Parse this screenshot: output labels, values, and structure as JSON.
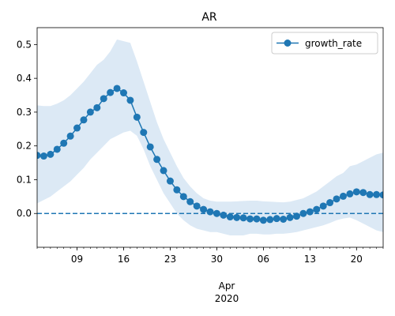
{
  "chart_data": {
    "type": "line",
    "title": "AR",
    "xlabel": "",
    "ylabel": "",
    "period_label": "Apr",
    "year_label": "2020",
    "ylim": [
      -0.1,
      0.55
    ],
    "xlim": [
      "2020-03-03",
      "2020-04-24"
    ],
    "y_ticks": [
      0.0,
      0.1,
      0.2,
      0.3,
      0.4,
      0.5
    ],
    "x_ticks": [
      {
        "date": "2020-03-09",
        "label": "09"
      },
      {
        "date": "2020-03-16",
        "label": "16"
      },
      {
        "date": "2020-03-23",
        "label": "23"
      },
      {
        "date": "2020-03-30",
        "label": "30"
      },
      {
        "date": "2020-04-06",
        "label": "06"
      },
      {
        "date": "2020-04-13",
        "label": "13"
      },
      {
        "date": "2020-04-20",
        "label": "20"
      }
    ],
    "reference_line": 0.0,
    "legend": {
      "position": "upper right"
    },
    "series": [
      {
        "name": "growth_rate",
        "color": "#1f77b4",
        "band_color": "#dce9f5",
        "dates": [
          "2020-03-03",
          "2020-03-04",
          "2020-03-05",
          "2020-03-06",
          "2020-03-07",
          "2020-03-08",
          "2020-03-09",
          "2020-03-10",
          "2020-03-11",
          "2020-03-12",
          "2020-03-13",
          "2020-03-14",
          "2020-03-15",
          "2020-03-16",
          "2020-03-17",
          "2020-03-18",
          "2020-03-19",
          "2020-03-20",
          "2020-03-21",
          "2020-03-22",
          "2020-03-23",
          "2020-03-24",
          "2020-03-25",
          "2020-03-26",
          "2020-03-27",
          "2020-03-28",
          "2020-03-29",
          "2020-03-30",
          "2020-03-31",
          "2020-04-01",
          "2020-04-02",
          "2020-04-03",
          "2020-04-04",
          "2020-04-05",
          "2020-04-06",
          "2020-04-07",
          "2020-04-08",
          "2020-04-09",
          "2020-04-10",
          "2020-04-11",
          "2020-04-12",
          "2020-04-13",
          "2020-04-14",
          "2020-04-15",
          "2020-04-16",
          "2020-04-17",
          "2020-04-18",
          "2020-04-19",
          "2020-04-20",
          "2020-04-21",
          "2020-04-22",
          "2020-04-23",
          "2020-04-24"
        ],
        "values": [
          0.172,
          0.17,
          0.175,
          0.19,
          0.208,
          0.229,
          0.253,
          0.277,
          0.3,
          0.313,
          0.34,
          0.358,
          0.37,
          0.357,
          0.335,
          0.285,
          0.24,
          0.197,
          0.16,
          0.127,
          0.096,
          0.07,
          0.05,
          0.035,
          0.022,
          0.012,
          0.005,
          0.0,
          -0.005,
          -0.01,
          -0.012,
          -0.013,
          -0.016,
          -0.016,
          -0.02,
          -0.018,
          -0.015,
          -0.017,
          -0.012,
          -0.008,
          0.0,
          0.005,
          0.012,
          0.022,
          0.032,
          0.043,
          0.051,
          0.058,
          0.064,
          0.062,
          0.056,
          0.056,
          0.055
        ],
        "lower": [
          0.03,
          0.04,
          0.05,
          0.065,
          0.08,
          0.095,
          0.115,
          0.135,
          0.16,
          0.18,
          0.2,
          0.22,
          0.23,
          0.24,
          0.245,
          0.23,
          0.19,
          0.14,
          0.1,
          0.06,
          0.03,
          0.0,
          -0.02,
          -0.035,
          -0.045,
          -0.05,
          -0.055,
          -0.055,
          -0.06,
          -0.065,
          -0.065,
          -0.065,
          -0.06,
          -0.06,
          -0.062,
          -0.062,
          -0.06,
          -0.06,
          -0.058,
          -0.055,
          -0.05,
          -0.045,
          -0.04,
          -0.035,
          -0.028,
          -0.02,
          -0.015,
          -0.012,
          -0.02,
          -0.03,
          -0.04,
          -0.05,
          -0.055
        ],
        "upper": [
          0.32,
          0.318,
          0.318,
          0.325,
          0.335,
          0.35,
          0.37,
          0.39,
          0.415,
          0.44,
          0.455,
          0.48,
          0.515,
          0.51,
          0.505,
          0.45,
          0.39,
          0.33,
          0.27,
          0.22,
          0.18,
          0.14,
          0.105,
          0.08,
          0.06,
          0.045,
          0.038,
          0.035,
          0.035,
          0.035,
          0.036,
          0.037,
          0.038,
          0.038,
          0.036,
          0.035,
          0.034,
          0.033,
          0.035,
          0.04,
          0.045,
          0.055,
          0.065,
          0.08,
          0.095,
          0.11,
          0.12,
          0.14,
          0.145,
          0.155,
          0.165,
          0.175,
          0.18
        ]
      }
    ]
  }
}
